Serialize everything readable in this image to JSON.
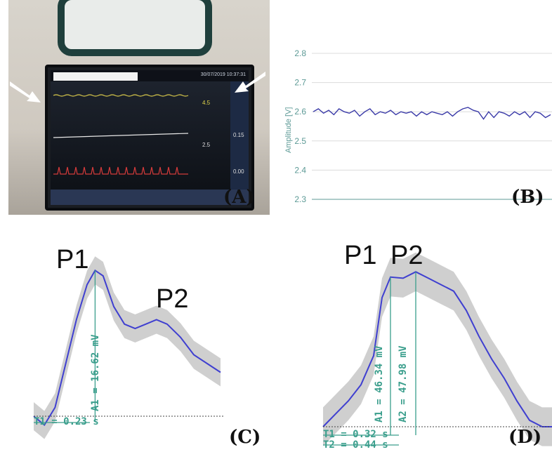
{
  "panels": {
    "a": {
      "label": "(A)",
      "monitor": {
        "date_time": "30/07/2019  10:37:31",
        "values": [
          "4.5",
          "2.5",
          "0.15",
          "0.00"
        ]
      }
    },
    "b": {
      "label": "(B)"
    },
    "c": {
      "label": "(C)"
    },
    "d": {
      "label": "(D)"
    }
  },
  "chart_data": [
    {
      "panel": "B",
      "type": "line",
      "ylabel": "Amplitude [V]",
      "xlabel": "",
      "ylim": [
        2.3,
        2.8
      ],
      "yticks": [
        "2.8",
        "2.7",
        "2.6",
        "2.5",
        "2.4",
        "2.3"
      ],
      "grid": true,
      "series": [
        {
          "color": "#3a3aa8",
          "values": [
            2.6,
            2.61,
            2.595,
            2.605,
            2.59,
            2.61,
            2.6,
            2.595,
            2.605,
            2.585,
            2.6,
            2.61,
            2.59,
            2.6,
            2.595,
            2.605,
            2.59,
            2.6,
            2.595,
            2.6,
            2.585,
            2.6,
            2.59,
            2.6,
            2.595,
            2.59,
            2.6,
            2.585,
            2.6,
            2.61,
            2.615,
            2.605,
            2.6,
            2.575,
            2.6,
            2.58,
            2.6,
            2.595,
            2.585,
            2.6,
            2.59,
            2.6,
            2.58,
            2.6,
            2.595,
            2.58,
            2.59
          ]
        }
      ]
    },
    {
      "panel": "C",
      "type": "line",
      "peaks": [
        "P1",
        "P2"
      ],
      "annotations": [
        "A1 = 16.62 mV",
        "T1 = 0.23 s"
      ],
      "series": [
        {
          "color": "#3f3fd0",
          "x": [
            0,
            0.04,
            0.08,
            0.12,
            0.16,
            0.2,
            0.23,
            0.26,
            0.3,
            0.34,
            0.38,
            0.42,
            0.46,
            0.5,
            0.55,
            0.6,
            0.65,
            0.7
          ],
          "values": [
            0,
            -1,
            1,
            6,
            11,
            15,
            16.62,
            16,
            12.5,
            10.5,
            10,
            10.5,
            11,
            10.5,
            9,
            7,
            6,
            5
          ],
          "band_width": 1.6
        }
      ]
    },
    {
      "panel": "D",
      "type": "line",
      "peaks": [
        "P1",
        "P2"
      ],
      "annotations": [
        "A1 = 46.34 mV",
        "A2 = 47.98 mV",
        "T1 = 0.32 s",
        "T2 = 0.44 s"
      ],
      "series": [
        {
          "color": "#3f3fd0",
          "x": [
            0,
            0.06,
            0.12,
            0.18,
            0.24,
            0.28,
            0.32,
            0.38,
            0.44,
            0.5,
            0.56,
            0.62,
            0.68,
            0.74,
            0.8,
            0.86,
            0.92,
            0.98,
            1.04,
            1.1
          ],
          "values": [
            0,
            4,
            8,
            13,
            22,
            40,
            46.34,
            46,
            47.98,
            46,
            44,
            42,
            36,
            28,
            21,
            15,
            8,
            2,
            0,
            0
          ],
          "band_width": 6
        }
      ]
    }
  ]
}
